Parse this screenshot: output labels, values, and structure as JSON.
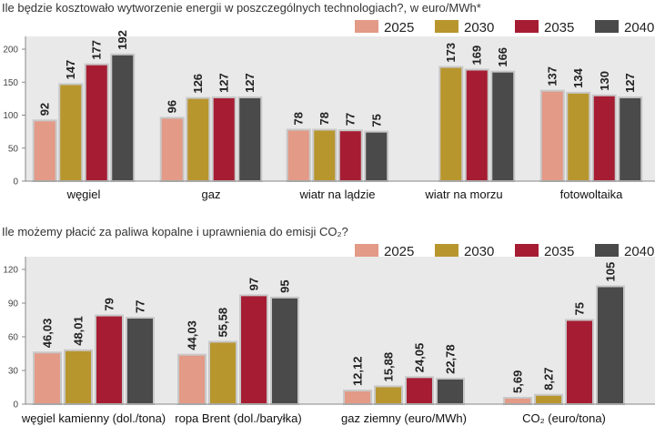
{
  "colors": {
    "2025": "#e39a86",
    "2030": "#b8962e",
    "2035": "#a61d33",
    "2040": "#4a4a4a",
    "panel": "#e9e9e9"
  },
  "chart_data": [
    {
      "type": "bar",
      "title": "Ile będzie kosztowało wytworzenie energii w poszczególnych technologiach?, w euro/MWh*",
      "categories": [
        "węgiel",
        "gaz",
        "wiatr na lądzie",
        "wiatr na morzu",
        "fotowoltaika"
      ],
      "legend": [
        "2025",
        "2030",
        "2035",
        "2040"
      ],
      "series": [
        {
          "name": "2025",
          "values": [
            92,
            96,
            78,
            null,
            137
          ],
          "labels": [
            "92",
            "96",
            "78",
            "",
            "137"
          ]
        },
        {
          "name": "2030",
          "values": [
            147,
            126,
            78,
            173,
            134
          ],
          "labels": [
            "147",
            "126",
            "78",
            "173",
            "134"
          ]
        },
        {
          "name": "2035",
          "values": [
            177,
            127,
            77,
            169,
            130
          ],
          "labels": [
            "177",
            "127",
            "77",
            "169",
            "130"
          ]
        },
        {
          "name": "2040",
          "values": [
            192,
            127,
            75,
            166,
            127
          ],
          "labels": [
            "192",
            "127",
            "75",
            "166",
            "127"
          ]
        }
      ],
      "ylim": [
        0,
        200
      ],
      "yticks": [
        "0",
        "50",
        "100",
        "150",
        "200"
      ],
      "grid": false,
      "legend_position": "top-right"
    },
    {
      "type": "bar",
      "title": "Ile możemy płacić za paliwa kopalne i uprawnienia do emisji CO₂?",
      "categories": [
        "węgiel kamienny (dol./tona)",
        "ropa Brent (dol./baryłka)",
        "gaz ziemny (euro/MWh)",
        "CO₂ (euro/tona)"
      ],
      "legend": [
        "2025",
        "2030",
        "2035",
        "2040"
      ],
      "series": [
        {
          "name": "2025",
          "values": [
            46.03,
            44.03,
            12.12,
            5.69
          ],
          "labels": [
            "46,03",
            "44,03",
            "12,12",
            "5,69"
          ]
        },
        {
          "name": "2030",
          "values": [
            48.01,
            55.58,
            15.88,
            8.27
          ],
          "labels": [
            "48,01",
            "55,58",
            "15,88",
            "8,27"
          ]
        },
        {
          "name": "2035",
          "values": [
            79,
            97,
            24.05,
            75
          ],
          "labels": [
            "79",
            "97",
            "24,05",
            "75"
          ]
        },
        {
          "name": "2040",
          "values": [
            77,
            95,
            22.78,
            105
          ],
          "labels": [
            "77",
            "95",
            "22,78",
            "105"
          ]
        }
      ],
      "ylim": [
        0,
        120
      ],
      "yticks": [
        "0",
        "30",
        "60",
        "90",
        "120"
      ],
      "grid": false,
      "legend_position": "top-right"
    }
  ]
}
